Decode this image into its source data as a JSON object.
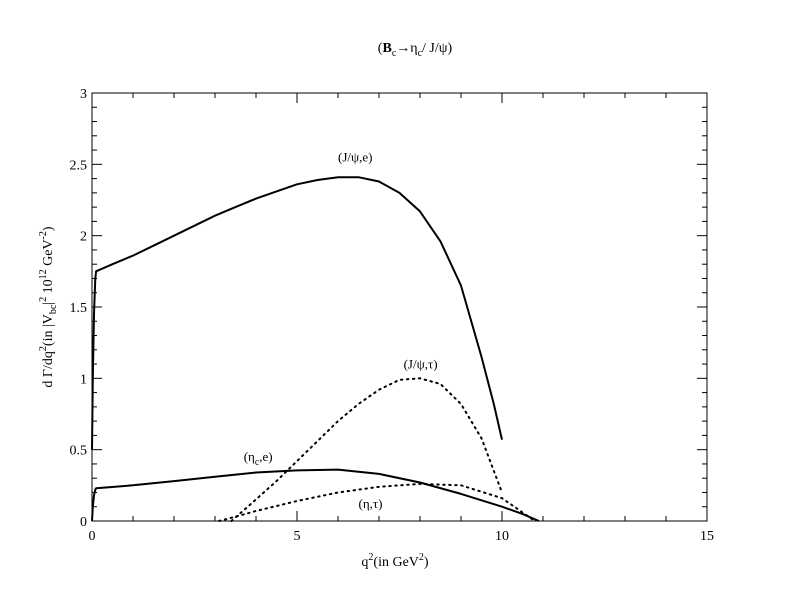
{
  "chart_data": {
    "type": "line",
    "title_parts": {
      "paren_open": "(",
      "b": "B",
      "b_sub": "c",
      "arrow": "→η",
      "eta_sub": "c",
      "rest": "/  J/ψ)"
    },
    "xlabel_parts": {
      "main": "q",
      "sup": "2",
      "paren": "(in GeV",
      "paren_sup": "2",
      "close": ")"
    },
    "ylabel_parts": {
      "a": "d Γ/dq",
      "a_sup": "2",
      "b": "(in |V",
      "b_sub": "bc",
      "c": "|",
      "c_sup": "2",
      "d": " 10",
      "d_sup": "12",
      "e": " GeV",
      "e_sup": "-2",
      "f": ")"
    },
    "xlim": [
      0,
      15
    ],
    "ylim": [
      0,
      3
    ],
    "xticks": [
      {
        "value": 0,
        "label": "0"
      },
      {
        "value": 5,
        "label": "5"
      },
      {
        "value": 10,
        "label": "10"
      },
      {
        "value": 15,
        "label": "15"
      }
    ],
    "yticks": [
      {
        "value": 0,
        "label": "0"
      },
      {
        "value": 0.5,
        "label": "0.5"
      },
      {
        "value": 1,
        "label": "1"
      },
      {
        "value": 1.5,
        "label": "1.5"
      },
      {
        "value": 2,
        "label": "2"
      },
      {
        "value": 2.5,
        "label": "2.5"
      },
      {
        "value": 3,
        "label": "3"
      }
    ],
    "series": [
      {
        "name": "J/ψ,e",
        "style": "solid",
        "label_parts": {
          "text": "(J/ψ,e)",
          "sub": ""
        },
        "label_at": [
          6.0,
          2.52
        ],
        "x": [
          0.0,
          0.02,
          0.05,
          0.08,
          0.1,
          0.5,
          1,
          1.5,
          2,
          2.5,
          3,
          3.5,
          4,
          4.5,
          5,
          5.5,
          6,
          6.5,
          7,
          7.5,
          8,
          8.5,
          9,
          9.5,
          9.8,
          10.0
        ],
        "y": [
          0.5,
          1.0,
          1.45,
          1.7,
          1.75,
          1.8,
          1.86,
          1.93,
          2.0,
          2.07,
          2.14,
          2.2,
          2.26,
          2.31,
          2.36,
          2.39,
          2.41,
          2.41,
          2.38,
          2.3,
          2.17,
          1.96,
          1.65,
          1.15,
          0.82,
          0.57
        ]
      },
      {
        "name": "J/ψ,τ",
        "style": "dotted",
        "label_parts": {
          "text": "(J/ψ,τ)",
          "sub": ""
        },
        "label_at": [
          7.6,
          1.07
        ],
        "x": [
          3.4,
          3.8,
          4.5,
          5,
          5.5,
          6,
          6.5,
          7,
          7.5,
          8,
          8.5,
          9,
          9.5,
          10.0
        ],
        "y": [
          0.0,
          0.1,
          0.28,
          0.42,
          0.56,
          0.7,
          0.82,
          0.92,
          0.99,
          1.0,
          0.96,
          0.82,
          0.58,
          0.2
        ]
      },
      {
        "name": "η_c,e",
        "style": "solid",
        "label_parts": {
          "text": "(η",
          "sub": "c",
          "tail": ",e)"
        },
        "label_at": [
          3.7,
          0.42
        ],
        "x": [
          0.0,
          0.02,
          0.05,
          0.08,
          0.1,
          1,
          2,
          3,
          4,
          5,
          6,
          7,
          8,
          9,
          10,
          10.5,
          10.9
        ],
        "y": [
          0.0,
          0.1,
          0.18,
          0.22,
          0.23,
          0.25,
          0.28,
          0.31,
          0.34,
          0.355,
          0.36,
          0.33,
          0.27,
          0.19,
          0.1,
          0.05,
          0.0
        ]
      },
      {
        "name": "η,τ",
        "style": "dotted",
        "label_parts": {
          "text": "(η,τ)",
          "sub": ""
        },
        "label_at": [
          6.5,
          0.09
        ],
        "x": [
          3.1,
          3.5,
          4,
          5,
          6,
          7,
          8,
          9,
          10,
          10.5,
          10.8
        ],
        "y": [
          0.0,
          0.03,
          0.07,
          0.14,
          0.2,
          0.24,
          0.26,
          0.25,
          0.16,
          0.06,
          0.0
        ]
      }
    ]
  }
}
